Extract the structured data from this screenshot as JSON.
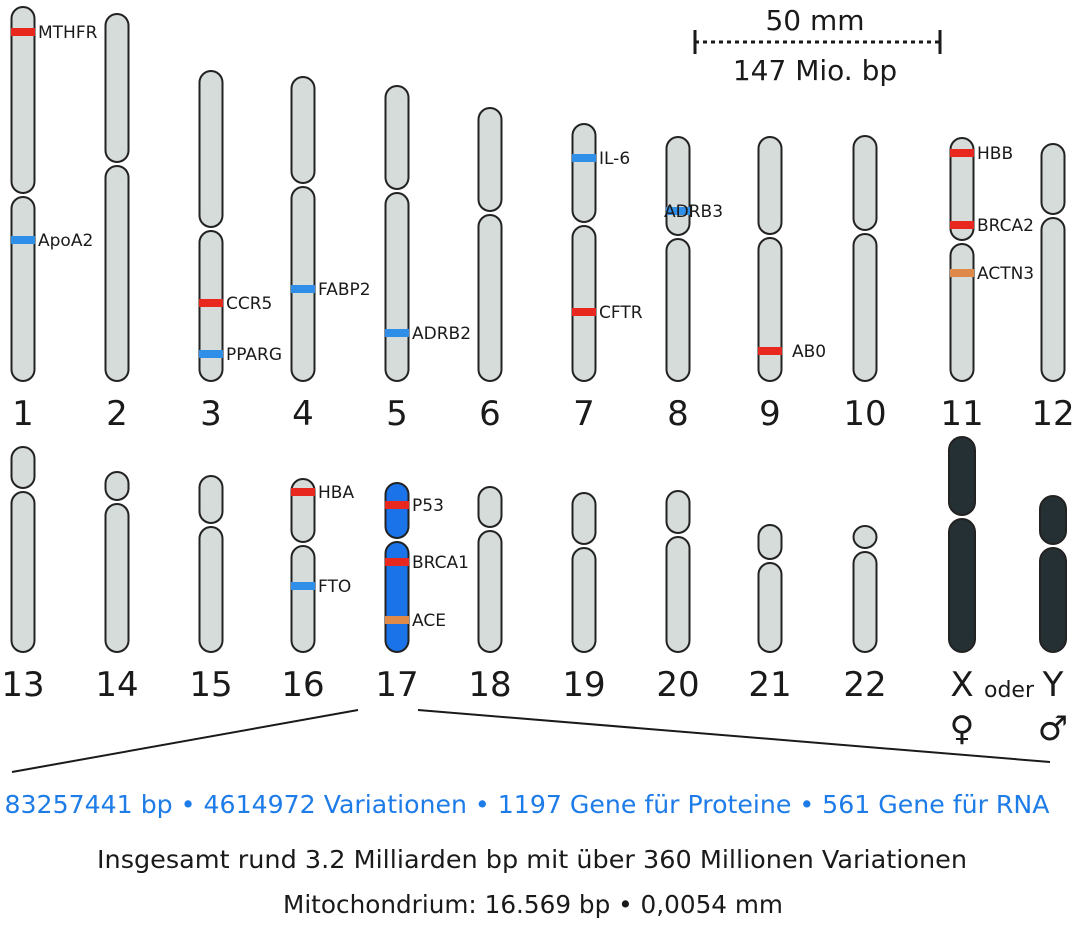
{
  "colors": {
    "chromosome_fill": "#d6dcda",
    "chromosome_stroke": "#222222",
    "highlight_fill": "#1a73e8",
    "sex_fill": "#253034",
    "band_red": "#e8281e",
    "band_blue": "#2f8fe8",
    "band_orange": "#e08a4a",
    "stats_blue": "#1e7ce8"
  },
  "scale": {
    "length": "50 mm",
    "bp": "147 Mio. bp"
  },
  "row1_labels": [
    "1",
    "2",
    "3",
    "4",
    "5",
    "6",
    "7",
    "8",
    "9",
    "10",
    "11",
    "12"
  ],
  "row2_labels": [
    "13",
    "14",
    "15",
    "16",
    "17",
    "18",
    "19",
    "20",
    "21",
    "22",
    "X",
    "Y"
  ],
  "sex": {
    "oder": "oder",
    "female": "♀",
    "male": "♂"
  },
  "genes": [
    {
      "label": "MTHFR",
      "chromosome": "1",
      "color": "red"
    },
    {
      "label": "ApoA2",
      "chromosome": "1",
      "color": "blue"
    },
    {
      "label": "CCR5",
      "chromosome": "3",
      "color": "red"
    },
    {
      "label": "PPARG",
      "chromosome": "3",
      "color": "blue"
    },
    {
      "label": "FABP2",
      "chromosome": "4",
      "color": "blue"
    },
    {
      "label": "ADRB2",
      "chromosome": "5",
      "color": "blue"
    },
    {
      "label": "IL-6",
      "chromosome": "7",
      "color": "blue"
    },
    {
      "label": "CFTR",
      "chromosome": "7",
      "color": "red"
    },
    {
      "label": "ADRB3",
      "chromosome": "8",
      "color": "blue"
    },
    {
      "label": "AB0",
      "chromosome": "9",
      "color": "red"
    },
    {
      "label": "HBB",
      "chromosome": "11",
      "color": "red"
    },
    {
      "label": "BRCA2",
      "chromosome": "11",
      "color": "red"
    },
    {
      "label": "ACTN3",
      "chromosome": "11",
      "color": "orange"
    },
    {
      "label": "HBA",
      "chromosome": "16",
      "color": "red"
    },
    {
      "label": "FTO",
      "chromosome": "16",
      "color": "blue"
    },
    {
      "label": "P53",
      "chromosome": "17",
      "color": "red"
    },
    {
      "label": "BRCA1",
      "chromosome": "17",
      "color": "red"
    },
    {
      "label": "ACE",
      "chromosome": "17",
      "color": "orange"
    }
  ],
  "stats_line": "83257441 bp • 4614972 Variationen • 1197 Gene für Proteine • 561 Gene für RNA",
  "total_line": "Insgesamt rund 3.2 Milliarden bp mit über 360 Millionen Variationen",
  "mito_line": "Mitochondrium: 16.569 bp • 0,0054 mm"
}
